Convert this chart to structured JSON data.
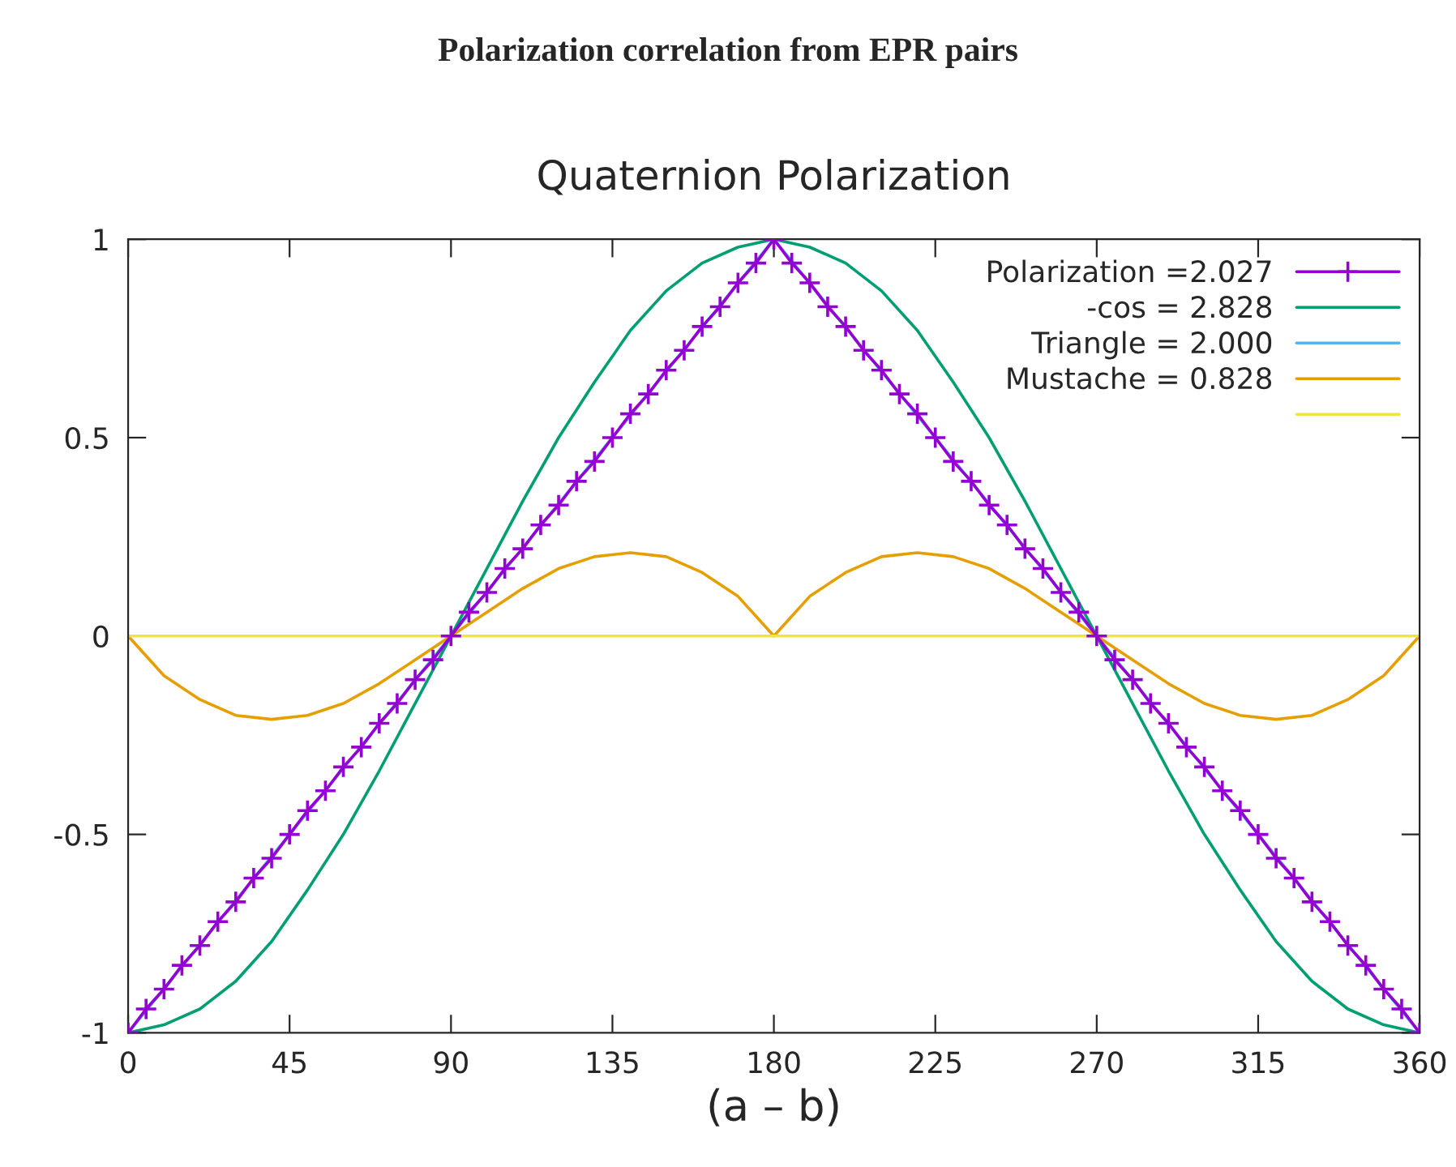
{
  "chart_data": {
    "type": "line",
    "title": "Polarization correlation from EPR pairs",
    "subtitle": "Quaternion Polarization",
    "xlabel": "(a – b)",
    "xlim": [
      0,
      360
    ],
    "xticks": [
      0,
      45,
      90,
      135,
      180,
      225,
      270,
      315,
      360
    ],
    "ylim": [
      -1,
      1
    ],
    "yticks": [
      -1,
      -0.5,
      0,
      0.5,
      1
    ],
    "legend": "top right",
    "grid": false,
    "series": [
      {
        "name": "Polarization =2.027",
        "color": "#9400d3",
        "marker": "cross",
        "x": [
          0,
          5,
          10,
          15,
          20,
          25,
          30,
          35,
          40,
          45,
          50,
          55,
          60,
          65,
          70,
          75,
          80,
          85,
          90,
          95,
          100,
          105,
          110,
          115,
          120,
          125,
          130,
          135,
          140,
          145,
          150,
          155,
          160,
          165,
          170,
          175,
          180,
          185,
          190,
          195,
          200,
          205,
          210,
          215,
          220,
          225,
          230,
          235,
          240,
          245,
          250,
          255,
          260,
          265,
          270,
          275,
          280,
          285,
          290,
          295,
          300,
          305,
          310,
          315,
          320,
          325,
          330,
          335,
          340,
          345,
          350,
          355,
          360
        ],
        "values": [
          -1,
          -0.94,
          -0.89,
          -0.83,
          -0.78,
          -0.72,
          -0.67,
          -0.61,
          -0.56,
          -0.5,
          -0.44,
          -0.39,
          -0.33,
          -0.28,
          -0.22,
          -0.17,
          -0.11,
          -0.06,
          0,
          0.06,
          0.11,
          0.17,
          0.22,
          0.28,
          0.33,
          0.39,
          0.44,
          0.5,
          0.56,
          0.61,
          0.67,
          0.72,
          0.78,
          0.83,
          0.89,
          0.94,
          1,
          0.94,
          0.89,
          0.83,
          0.78,
          0.72,
          0.67,
          0.61,
          0.56,
          0.5,
          0.44,
          0.39,
          0.33,
          0.28,
          0.22,
          0.17,
          0.11,
          0.06,
          0,
          -0.06,
          -0.11,
          -0.17,
          -0.22,
          -0.28,
          -0.33,
          -0.39,
          -0.44,
          -0.5,
          -0.56,
          -0.61,
          -0.67,
          -0.72,
          -0.78,
          -0.83,
          -0.89,
          -0.94,
          -1
        ]
      },
      {
        "name": "-cos = 2.828",
        "color": "#009e73",
        "x": [
          0,
          10,
          20,
          30,
          40,
          50,
          60,
          70,
          80,
          90,
          100,
          110,
          120,
          130,
          140,
          150,
          160,
          170,
          180,
          190,
          200,
          210,
          220,
          230,
          240,
          250,
          260,
          270,
          280,
          290,
          300,
          310,
          320,
          330,
          340,
          350,
          360
        ],
        "values": [
          -1,
          -0.98,
          -0.94,
          -0.87,
          -0.77,
          -0.64,
          -0.5,
          -0.34,
          -0.17,
          0,
          0.17,
          0.34,
          0.5,
          0.64,
          0.77,
          0.87,
          0.94,
          0.98,
          1,
          0.98,
          0.94,
          0.87,
          0.77,
          0.64,
          0.5,
          0.34,
          0.17,
          0,
          -0.17,
          -0.34,
          -0.5,
          -0.64,
          -0.77,
          -0.87,
          -0.94,
          -0.98,
          -1
        ]
      },
      {
        "name": "Triangle = 2.000",
        "color": "#56b4e9",
        "x": [
          0,
          180,
          360
        ],
        "values": [
          -1,
          1,
          -1
        ]
      },
      {
        "name": "Mustache = 0.828",
        "color": "#e69f00",
        "x": [
          0,
          10,
          20,
          30,
          40,
          50,
          60,
          70,
          80,
          90,
          100,
          110,
          120,
          130,
          140,
          150,
          160,
          170,
          180,
          190,
          200,
          210,
          220,
          230,
          240,
          250,
          260,
          270,
          280,
          290,
          300,
          310,
          320,
          330,
          340,
          350,
          360
        ],
        "values": [
          0,
          -0.1,
          -0.16,
          -0.2,
          -0.21,
          -0.2,
          -0.17,
          -0.12,
          -0.06,
          0,
          0.06,
          0.12,
          0.17,
          0.2,
          0.21,
          0.2,
          0.16,
          0.1,
          0,
          0.1,
          0.16,
          0.2,
          0.21,
          0.2,
          0.17,
          0.12,
          0.06,
          0,
          -0.06,
          -0.12,
          -0.17,
          -0.2,
          -0.21,
          -0.2,
          -0.16,
          -0.1,
          0
        ]
      },
      {
        "color": "#f0e442",
        "x": [
          0,
          360
        ],
        "values": [
          0,
          0
        ]
      }
    ]
  }
}
